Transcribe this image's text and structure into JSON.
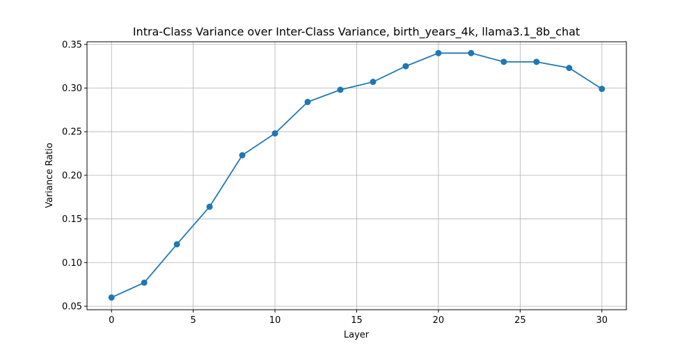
{
  "chart_data": {
    "type": "line",
    "title": "Intra-Class Variance over Inter-Class Variance, birth_years_4k, llama3.1_8b_chat",
    "xlabel": "Layer",
    "ylabel": "Variance Ratio",
    "xlim": [
      -1.5,
      31.5
    ],
    "ylim": [
      0.046,
      0.353
    ],
    "xticks": [
      0,
      5,
      10,
      15,
      20,
      25,
      30
    ],
    "yticks": [
      0.05,
      0.1,
      0.15,
      0.2,
      0.25,
      0.3,
      0.35
    ],
    "grid": true,
    "marker": "circle",
    "color": "#1f77b4",
    "series": [
      {
        "x": [
          0,
          2,
          4,
          6,
          8,
          10,
          12,
          14,
          16,
          18,
          20,
          22,
          24,
          26,
          28,
          30
        ],
        "y": [
          0.06,
          0.077,
          0.121,
          0.164,
          0.223,
          0.248,
          0.284,
          0.298,
          0.307,
          0.325,
          0.34,
          0.34,
          0.33,
          0.33,
          0.323,
          0.299
        ]
      }
    ]
  }
}
